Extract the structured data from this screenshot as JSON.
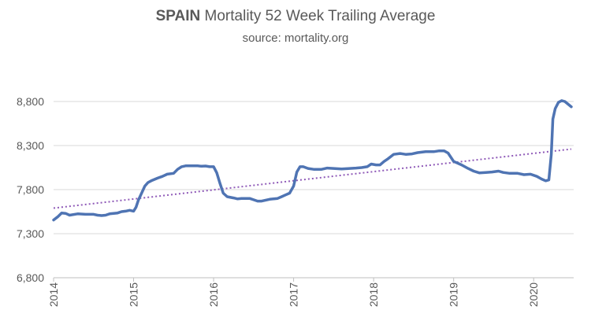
{
  "chart_data": {
    "type": "line",
    "title_bold": "SPAIN",
    "title_rest": " Mortality 52 Week Trailing Average",
    "subtitle": "source: mortality.org",
    "xlabel": "",
    "ylabel": "",
    "ylim": [
      6800,
      8800
    ],
    "yticks": [
      "6,800",
      "7,300",
      "7,800",
      "8,300",
      "8,800"
    ],
    "ytick_values": [
      6800,
      7300,
      7800,
      8300,
      8800
    ],
    "xlim": [
      2014,
      2020.5
    ],
    "xticks": [
      "2014",
      "2015",
      "2016",
      "2017",
      "2018",
      "2019",
      "2020"
    ],
    "xtick_values": [
      2014,
      2015,
      2016,
      2017,
      2018,
      2019,
      2020
    ],
    "grid": true,
    "line_color": "#4f74b3",
    "trend_color": "#8f5ab8",
    "series": [
      {
        "points": [
          [
            2014.0,
            7455
          ],
          [
            2014.05,
            7490
          ],
          [
            2014.1,
            7535
          ],
          [
            2014.15,
            7530
          ],
          [
            2014.2,
            7510
          ],
          [
            2014.3,
            7525
          ],
          [
            2014.4,
            7520
          ],
          [
            2014.5,
            7520
          ],
          [
            2014.55,
            7510
          ],
          [
            2014.6,
            7505
          ],
          [
            2014.65,
            7510
          ],
          [
            2014.7,
            7525
          ],
          [
            2014.8,
            7535
          ],
          [
            2014.85,
            7550
          ],
          [
            2014.9,
            7555
          ],
          [
            2014.95,
            7565
          ],
          [
            2015.0,
            7555
          ],
          [
            2015.03,
            7600
          ],
          [
            2015.06,
            7680
          ],
          [
            2015.1,
            7760
          ],
          [
            2015.14,
            7840
          ],
          [
            2015.18,
            7880
          ],
          [
            2015.22,
            7900
          ],
          [
            2015.3,
            7930
          ],
          [
            2015.36,
            7950
          ],
          [
            2015.42,
            7975
          ],
          [
            2015.5,
            7985
          ],
          [
            2015.55,
            8030
          ],
          [
            2015.6,
            8060
          ],
          [
            2015.65,
            8070
          ],
          [
            2015.7,
            8070
          ],
          [
            2015.8,
            8070
          ],
          [
            2015.85,
            8065
          ],
          [
            2015.9,
            8068
          ],
          [
            2015.95,
            8060
          ],
          [
            2016.0,
            8060
          ],
          [
            2016.04,
            7990
          ],
          [
            2016.08,
            7870
          ],
          [
            2016.12,
            7760
          ],
          [
            2016.17,
            7720
          ],
          [
            2016.25,
            7705
          ],
          [
            2016.3,
            7695
          ],
          [
            2016.35,
            7700
          ],
          [
            2016.45,
            7700
          ],
          [
            2016.5,
            7685
          ],
          [
            2016.55,
            7670
          ],
          [
            2016.6,
            7670
          ],
          [
            2016.65,
            7680
          ],
          [
            2016.7,
            7690
          ],
          [
            2016.8,
            7700
          ],
          [
            2016.85,
            7720
          ],
          [
            2016.9,
            7740
          ],
          [
            2016.95,
            7760
          ],
          [
            2017.0,
            7840
          ],
          [
            2017.04,
            8000
          ],
          [
            2017.08,
            8060
          ],
          [
            2017.12,
            8060
          ],
          [
            2017.18,
            8040
          ],
          [
            2017.25,
            8030
          ],
          [
            2017.35,
            8030
          ],
          [
            2017.42,
            8045
          ],
          [
            2017.5,
            8040
          ],
          [
            2017.6,
            8035
          ],
          [
            2017.7,
            8040
          ],
          [
            2017.78,
            8045
          ],
          [
            2017.85,
            8050
          ],
          [
            2017.92,
            8060
          ],
          [
            2017.97,
            8090
          ],
          [
            2018.03,
            8080
          ],
          [
            2018.08,
            8080
          ],
          [
            2018.13,
            8120
          ],
          [
            2018.18,
            8150
          ],
          [
            2018.25,
            8200
          ],
          [
            2018.33,
            8210
          ],
          [
            2018.4,
            8200
          ],
          [
            2018.48,
            8205
          ],
          [
            2018.55,
            8220
          ],
          [
            2018.65,
            8230
          ],
          [
            2018.75,
            8230
          ],
          [
            2018.82,
            8240
          ],
          [
            2018.88,
            8240
          ],
          [
            2018.93,
            8215
          ],
          [
            2019.0,
            8120
          ],
          [
            2019.05,
            8100
          ],
          [
            2019.1,
            8080
          ],
          [
            2019.18,
            8040
          ],
          [
            2019.25,
            8010
          ],
          [
            2019.32,
            7990
          ],
          [
            2019.4,
            7995
          ],
          [
            2019.48,
            8000
          ],
          [
            2019.56,
            8010
          ],
          [
            2019.62,
            7995
          ],
          [
            2019.7,
            7985
          ],
          [
            2019.8,
            7985
          ],
          [
            2019.88,
            7970
          ],
          [
            2019.96,
            7975
          ],
          [
            2020.04,
            7950
          ],
          [
            2020.1,
            7920
          ],
          [
            2020.15,
            7900
          ],
          [
            2020.19,
            7910
          ],
          [
            2020.22,
            8200
          ],
          [
            2020.24,
            8600
          ],
          [
            2020.27,
            8720
          ],
          [
            2020.31,
            8790
          ],
          [
            2020.35,
            8810
          ],
          [
            2020.39,
            8800
          ],
          [
            2020.43,
            8770
          ],
          [
            2020.47,
            8740
          ]
        ]
      }
    ],
    "trendline": {
      "points": [
        [
          2014.0,
          7590
        ],
        [
          2020.47,
          8260
        ]
      ]
    }
  }
}
